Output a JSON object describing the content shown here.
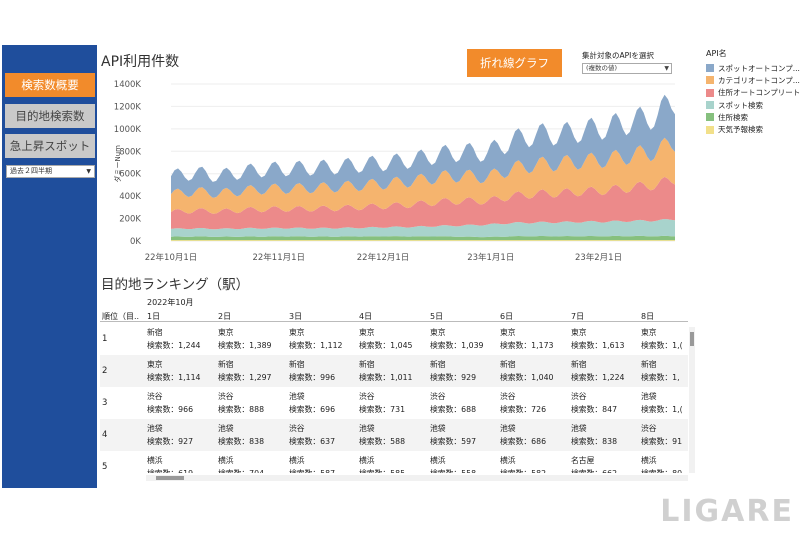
{
  "sidebar": {
    "buttons": [
      {
        "label": "検索数概要",
        "active": true
      },
      {
        "label": "目的地検索数",
        "active": false
      },
      {
        "label": "急上昇スポット",
        "active": false
      }
    ],
    "period_select": "過去２四半期"
  },
  "chart_header": {
    "title": "API利用件数",
    "line_chart_button": "折れ線グラフ",
    "api_filter_label": "集計対象のAPIを選択",
    "api_filter_value": "(複数の値)"
  },
  "legend": {
    "title": "API名",
    "items": [
      {
        "name": "スポットオートコンプ...",
        "color": "#8aa8c9"
      },
      {
        "name": "カテゴリオートコンプ...",
        "color": "#f5b46e"
      },
      {
        "name": "住所オートコンプリート",
        "color": "#ec8a8a"
      },
      {
        "name": "スポット検索",
        "color": "#a8d3cc"
      },
      {
        "name": "住所検索",
        "color": "#86c07e"
      },
      {
        "name": "天気予報検索",
        "color": "#f2e08a"
      }
    ]
  },
  "chart_data": {
    "type": "area",
    "stacked": true,
    "ylabel": "ダミーNum",
    "y_ticks": [
      "0K",
      "200K",
      "400K",
      "600K",
      "800K",
      "1000K",
      "1200K",
      "1400K"
    ],
    "ylim": [
      0,
      1400000
    ],
    "x_tick_labels": [
      "22年10月1日",
      "22年11月1日",
      "22年12月1日",
      "23年1月1日",
      "23年2月1日"
    ],
    "x_range": [
      "2022-10-01",
      "2023-02-23"
    ],
    "weekly_points": [
      "2022-10-01",
      "2022-10-08",
      "2022-10-15",
      "2022-10-22",
      "2022-10-29",
      "2022-11-05",
      "2022-11-12",
      "2022-11-19",
      "2022-11-26",
      "2022-12-03",
      "2022-12-10",
      "2022-12-17",
      "2022-12-24",
      "2022-12-31",
      "2023-01-07",
      "2023-01-14",
      "2023-01-21",
      "2023-01-28",
      "2023-02-04",
      "2023-02-11",
      "2023-02-18",
      "2023-02-23"
    ],
    "series": [
      {
        "name": "天気予報検索",
        "values": [
          8000,
          8000,
          8000,
          8000,
          8000,
          8000,
          8000,
          8000,
          8000,
          8000,
          8000,
          8000,
          8000,
          8000,
          8000,
          8000,
          8000,
          8000,
          8000,
          8000,
          8000,
          8000
        ]
      },
      {
        "name": "住所検索",
        "values": [
          30000,
          32000,
          30000,
          31000,
          32000,
          33000,
          31000,
          32000,
          33000,
          34000,
          33000,
          34000,
          30000,
          28000,
          34000,
          35000,
          34000,
          35000,
          35000,
          36000,
          35000,
          36000
        ]
      },
      {
        "name": "スポット検索",
        "values": [
          70000,
          72000,
          70000,
          73000,
          74000,
          75000,
          74000,
          76000,
          78000,
          82000,
          85000,
          92000,
          100000,
          110000,
          118000,
          122000,
          125000,
          128000,
          130000,
          135000,
          140000,
          150000
        ]
      },
      {
        "name": "住所オートコンプリート",
        "values": [
          150000,
          160000,
          155000,
          165000,
          170000,
          170000,
          175000,
          178000,
          185000,
          190000,
          200000,
          215000,
          220000,
          210000,
          240000,
          255000,
          260000,
          270000,
          280000,
          300000,
          320000,
          360000
        ]
      },
      {
        "name": "カテゴリオートコンプ...",
        "values": [
          160000,
          170000,
          160000,
          172000,
          180000,
          182000,
          185000,
          190000,
          195000,
          200000,
          210000,
          220000,
          225000,
          210000,
          245000,
          260000,
          265000,
          270000,
          275000,
          285000,
          300000,
          330000
        ]
      },
      {
        "name": "スポットオートコンプ...",
        "values": [
          160000,
          165000,
          158000,
          170000,
          175000,
          178000,
          180000,
          182000,
          185000,
          185000,
          190000,
          200000,
          210000,
          220000,
          250000,
          270000,
          260000,
          275000,
          290000,
          305000,
          320000,
          380000
        ]
      }
    ]
  },
  "ranking": {
    "title": "目的地ランキング（駅）",
    "month_label": "2022年10月",
    "rank_header": "順位（目..",
    "days": [
      "1日",
      "2日",
      "3日",
      "4日",
      "5日",
      "6日",
      "7日",
      "8日"
    ],
    "rows": [
      {
        "rank": "1",
        "cells": [
          {
            "station": "新宿",
            "count": "検索数：1,244"
          },
          {
            "station": "東京",
            "count": "検索数：1,389"
          },
          {
            "station": "東京",
            "count": "検索数：1,112"
          },
          {
            "station": "東京",
            "count": "検索数：1,045"
          },
          {
            "station": "東京",
            "count": "検索数：1,039"
          },
          {
            "station": "東京",
            "count": "検索数：1,173"
          },
          {
            "station": "東京",
            "count": "検索数：1,613"
          },
          {
            "station": "東京",
            "count": "検索数：1,("
          }
        ]
      },
      {
        "rank": "2",
        "cells": [
          {
            "station": "東京",
            "count": "検索数：1,114"
          },
          {
            "station": "新宿",
            "count": "検索数：1,297"
          },
          {
            "station": "新宿",
            "count": "検索数：996"
          },
          {
            "station": "新宿",
            "count": "検索数：1,011"
          },
          {
            "station": "新宿",
            "count": "検索数：929"
          },
          {
            "station": "新宿",
            "count": "検索数：1,040"
          },
          {
            "station": "新宿",
            "count": "検索数：1,224"
          },
          {
            "station": "新宿",
            "count": "検索数：1,"
          }
        ]
      },
      {
        "rank": "3",
        "cells": [
          {
            "station": "渋谷",
            "count": "検索数：966"
          },
          {
            "station": "渋谷",
            "count": "検索数：888"
          },
          {
            "station": "池袋",
            "count": "検索数：696"
          },
          {
            "station": "渋谷",
            "count": "検索数：731"
          },
          {
            "station": "渋谷",
            "count": "検索数：688"
          },
          {
            "station": "渋谷",
            "count": "検索数：726"
          },
          {
            "station": "渋谷",
            "count": "検索数：847"
          },
          {
            "station": "池袋",
            "count": "検索数：1,("
          }
        ]
      },
      {
        "rank": "4",
        "cells": [
          {
            "station": "池袋",
            "count": "検索数：927"
          },
          {
            "station": "池袋",
            "count": "検索数：838"
          },
          {
            "station": "渋谷",
            "count": "検索数：637"
          },
          {
            "station": "池袋",
            "count": "検索数：588"
          },
          {
            "station": "池袋",
            "count": "検索数：597"
          },
          {
            "station": "池袋",
            "count": "検索数：686"
          },
          {
            "station": "池袋",
            "count": "検索数：838"
          },
          {
            "station": "渋谷",
            "count": "検索数：91"
          }
        ]
      },
      {
        "rank": "5",
        "cells": [
          {
            "station": "横浜",
            "count": "検索数：619"
          },
          {
            "station": "横浜",
            "count": "検索数：704"
          },
          {
            "station": "横浜",
            "count": "検索数：587"
          },
          {
            "station": "横浜",
            "count": "検索数：585"
          },
          {
            "station": "横浜",
            "count": "検索数：558"
          },
          {
            "station": "横浜",
            "count": "検索数：582"
          },
          {
            "station": "名古屋",
            "count": "検索数：662"
          },
          {
            "station": "横浜",
            "count": "検索数：80"
          }
        ]
      }
    ]
  },
  "watermark": "LIGARE"
}
